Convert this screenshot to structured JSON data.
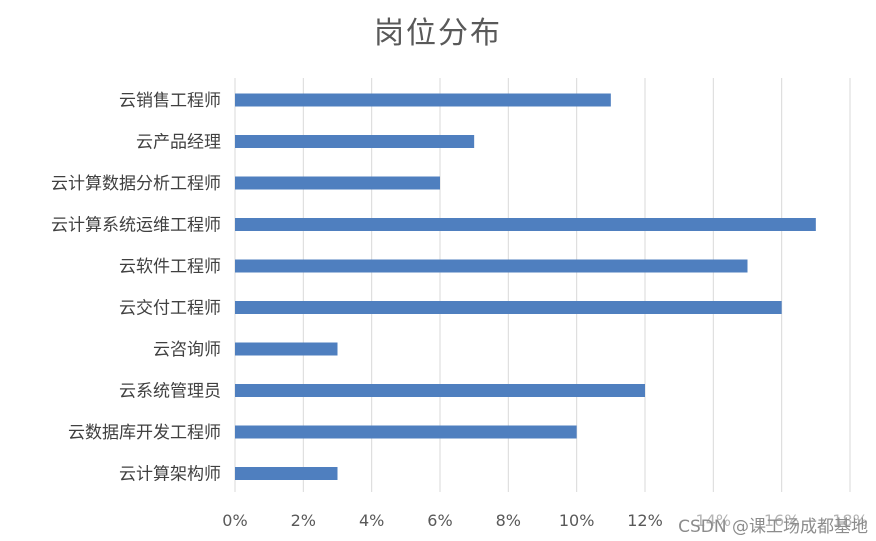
{
  "chart_data": {
    "type": "bar",
    "orientation": "horizontal",
    "title": "岗位分布",
    "categories": [
      "云销售工程师",
      "云产品经理",
      "云计算数据分析工程师",
      "云计算系统运维工程师",
      "云软件工程师",
      "云交付工程师",
      "云咨询师",
      "云系统管理员",
      "云数据库开发工程师",
      "云计算架构师"
    ],
    "values": [
      0.11,
      0.07,
      0.06,
      0.17,
      0.15,
      0.16,
      0.03,
      0.12,
      0.1,
      0.03
    ],
    "x_ticks": [
      "0%",
      "2%",
      "4%",
      "6%",
      "8%",
      "10%",
      "12%",
      "14%",
      "16%",
      "18%"
    ],
    "xlim": [
      0,
      0.18
    ],
    "xlabel": "",
    "ylabel": "",
    "grid": true,
    "legend": "none",
    "bar_color": "#4f7fbf"
  },
  "watermark": "CSDN @课工场成都基地"
}
